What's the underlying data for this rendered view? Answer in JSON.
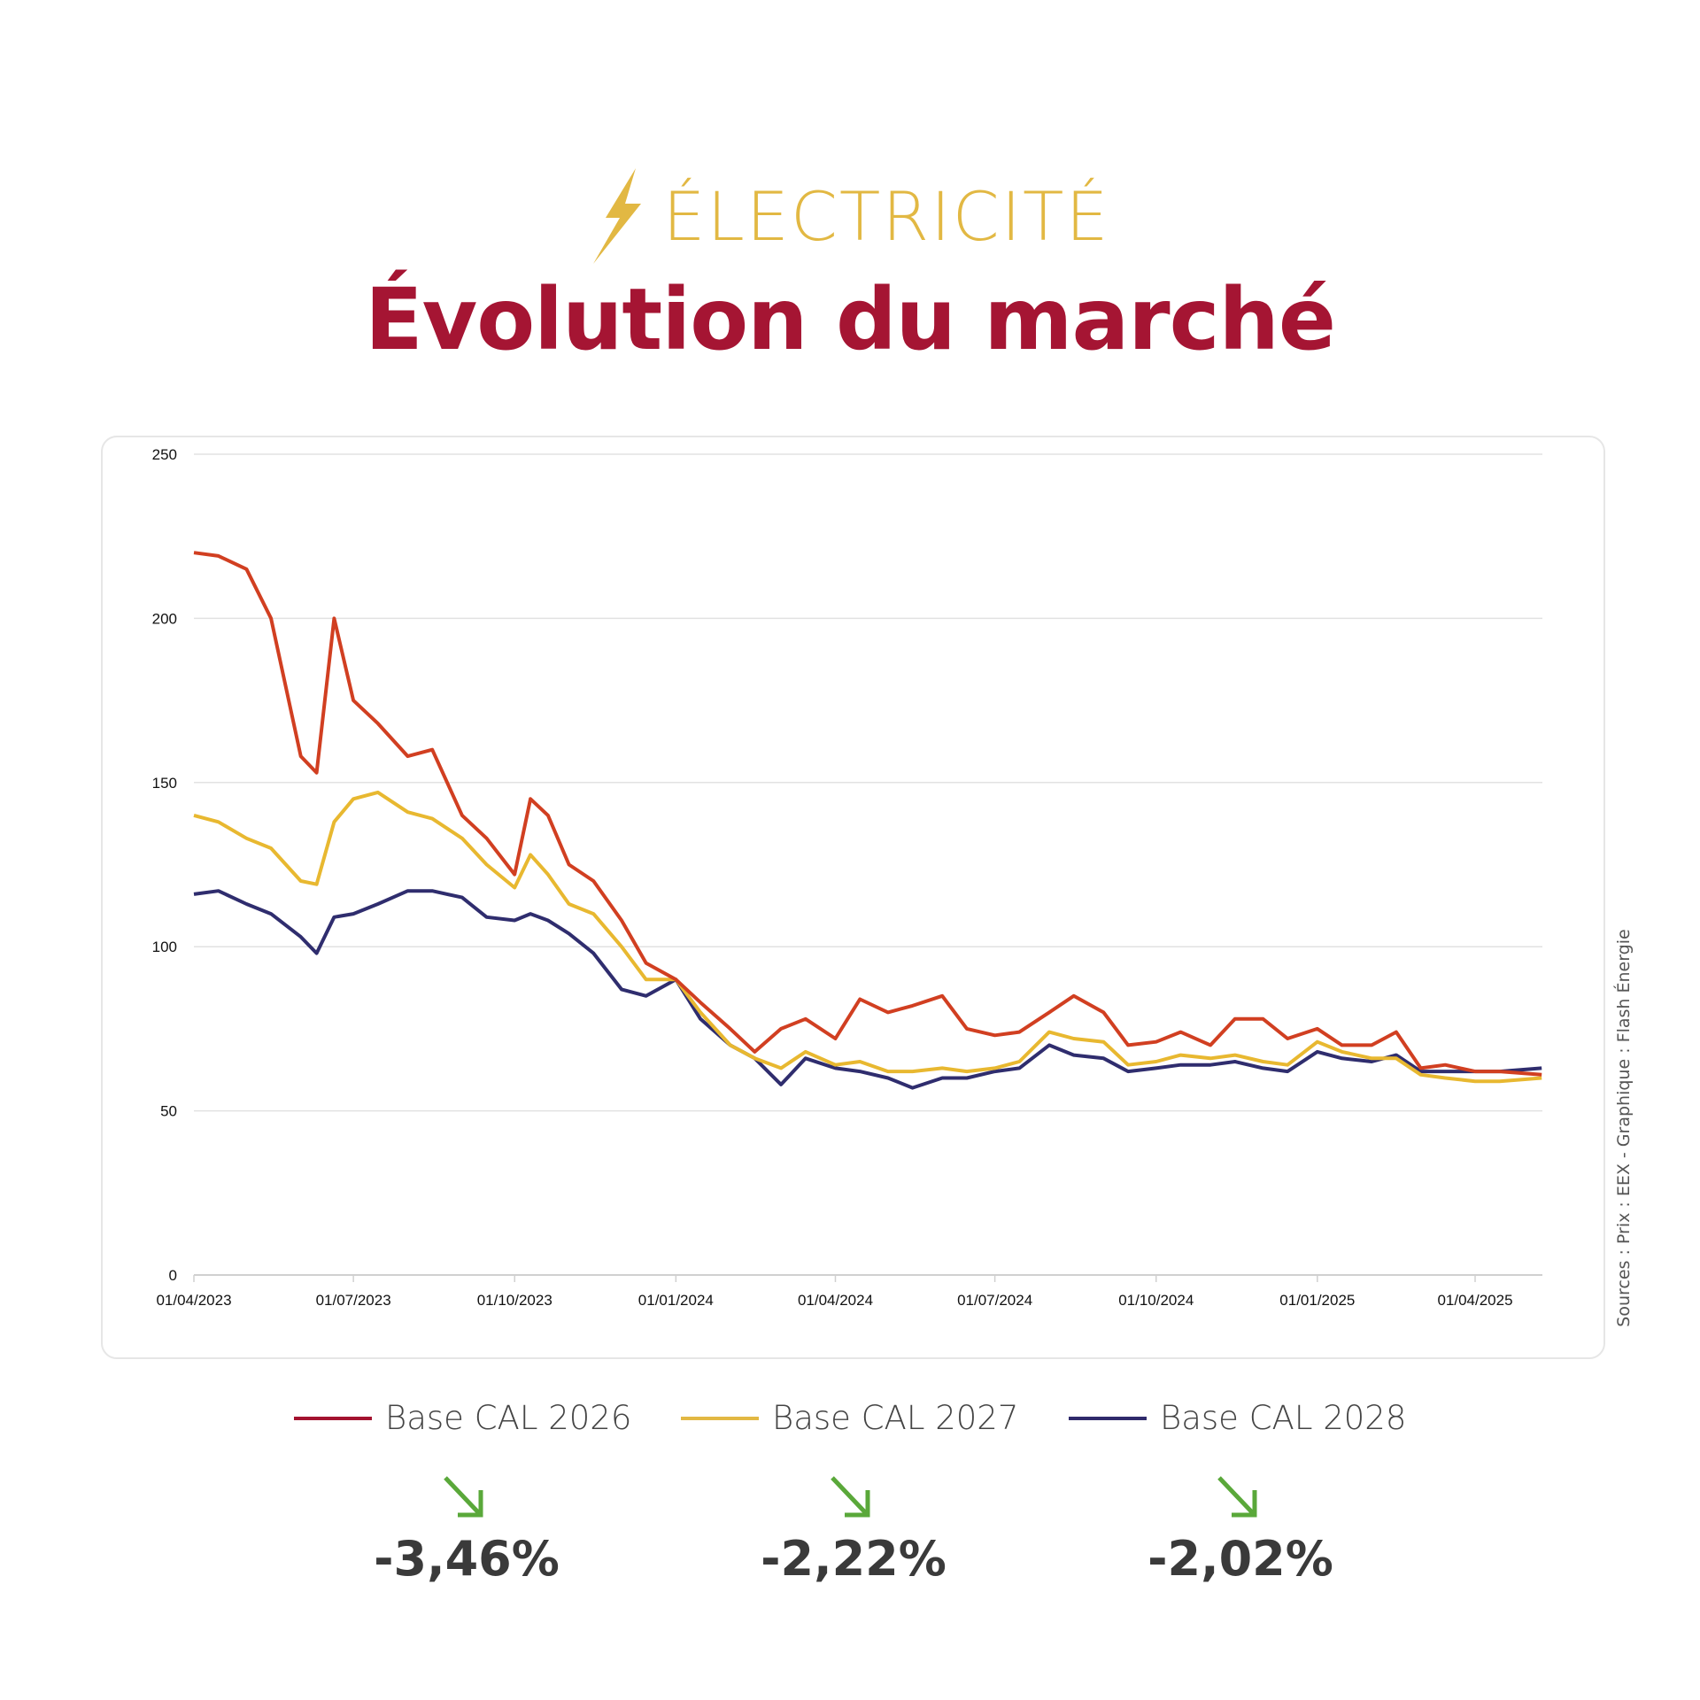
{
  "header": {
    "kicker": "ÉLECTRICITÉ",
    "kicker_icon": "lightning-bolt-icon",
    "title": "Évolution du marché",
    "kicker_color": "#e2b843",
    "title_color": "#a51533"
  },
  "source": "Sources : Prix : EEX - Graphique : Flash Énergie",
  "chart_data": {
    "type": "line",
    "title": "",
    "xlabel": "",
    "ylabel": "",
    "ylim": [
      0,
      250
    ],
    "yticks": [
      "0",
      "50",
      "100",
      "150",
      "200",
      "250"
    ],
    "xticks": [
      "01/04/2023",
      "01/07/2023",
      "01/10/2023",
      "01/01/2024",
      "01/04/2024",
      "01/07/2024",
      "01/10/2024",
      "01/01/2025",
      "01/04/2025"
    ],
    "grid": "horizontal",
    "legend": "bottom",
    "x": [
      "2023-04-01",
      "2023-04-15",
      "2023-05-01",
      "2023-05-15",
      "2023-06-01",
      "2023-06-10",
      "2023-06-20",
      "2023-07-01",
      "2023-07-15",
      "2023-08-01",
      "2023-08-15",
      "2023-09-01",
      "2023-09-15",
      "2023-10-01",
      "2023-10-10",
      "2023-10-20",
      "2023-11-01",
      "2023-11-15",
      "2023-12-01",
      "2023-12-15",
      "2024-01-01",
      "2024-01-15",
      "2024-02-01",
      "2024-02-15",
      "2024-03-01",
      "2024-03-15",
      "2024-04-01",
      "2024-04-15",
      "2024-05-01",
      "2024-05-15",
      "2024-06-01",
      "2024-06-15",
      "2024-07-01",
      "2024-07-15",
      "2024-08-01",
      "2024-08-15",
      "2024-09-01",
      "2024-09-15",
      "2024-10-01",
      "2024-10-15",
      "2024-11-01",
      "2024-11-15",
      "2024-12-01",
      "2024-12-15",
      "2025-01-01",
      "2025-01-15",
      "2025-02-01",
      "2025-02-15",
      "2025-03-01",
      "2025-03-15",
      "2025-04-01",
      "2025-04-15",
      "2025-05-09"
    ],
    "series": [
      {
        "name": "Base CAL 2026",
        "color": "#d13f21",
        "legend_color": "#a3122f",
        "change": "-3,46%",
        "values": [
          220,
          219,
          215,
          200,
          158,
          153,
          200,
          175,
          168,
          158,
          160,
          140,
          133,
          122,
          145,
          140,
          125,
          120,
          108,
          95,
          90,
          83,
          75,
          68,
          75,
          78,
          72,
          84,
          80,
          82,
          85,
          75,
          73,
          74,
          80,
          85,
          80,
          70,
          71,
          74,
          70,
          78,
          78,
          72,
          75,
          70,
          70,
          74,
          63,
          64,
          62,
          62,
          61
        ]
      },
      {
        "name": "Base CAL 2027",
        "color": "#e8b830",
        "legend_color": "#e2b843",
        "change": "-2,22%",
        "values": [
          140,
          138,
          133,
          130,
          120,
          119,
          138,
          145,
          147,
          141,
          139,
          133,
          125,
          118,
          128,
          122,
          113,
          110,
          100,
          90,
          90,
          80,
          70,
          66,
          63,
          68,
          64,
          65,
          62,
          62,
          63,
          62,
          63,
          65,
          74,
          72,
          71,
          64,
          65,
          67,
          66,
          67,
          65,
          64,
          71,
          68,
          66,
          66,
          61,
          60,
          59,
          59,
          60
        ]
      },
      {
        "name": "Base CAL 2028",
        "color": "#2f2d6e",
        "legend_color": "#2f2a6b",
        "change": "-2,02%",
        "values": [
          116,
          117,
          113,
          110,
          103,
          98,
          109,
          110,
          113,
          117,
          117,
          115,
          109,
          108,
          110,
          108,
          104,
          98,
          87,
          85,
          90,
          78,
          70,
          66,
          58,
          66,
          63,
          62,
          60,
          57,
          60,
          60,
          62,
          63,
          70,
          67,
          66,
          62,
          63,
          64,
          64,
          65,
          63,
          62,
          68,
          66,
          65,
          67,
          62,
          62,
          62,
          62,
          63
        ]
      }
    ]
  },
  "changes": {
    "arrow_icon": "arrow-down-right-icon",
    "arrow_color": "#5aa83a",
    "items": [
      "-3,46%",
      "-2,22%",
      "-2,02%"
    ]
  }
}
